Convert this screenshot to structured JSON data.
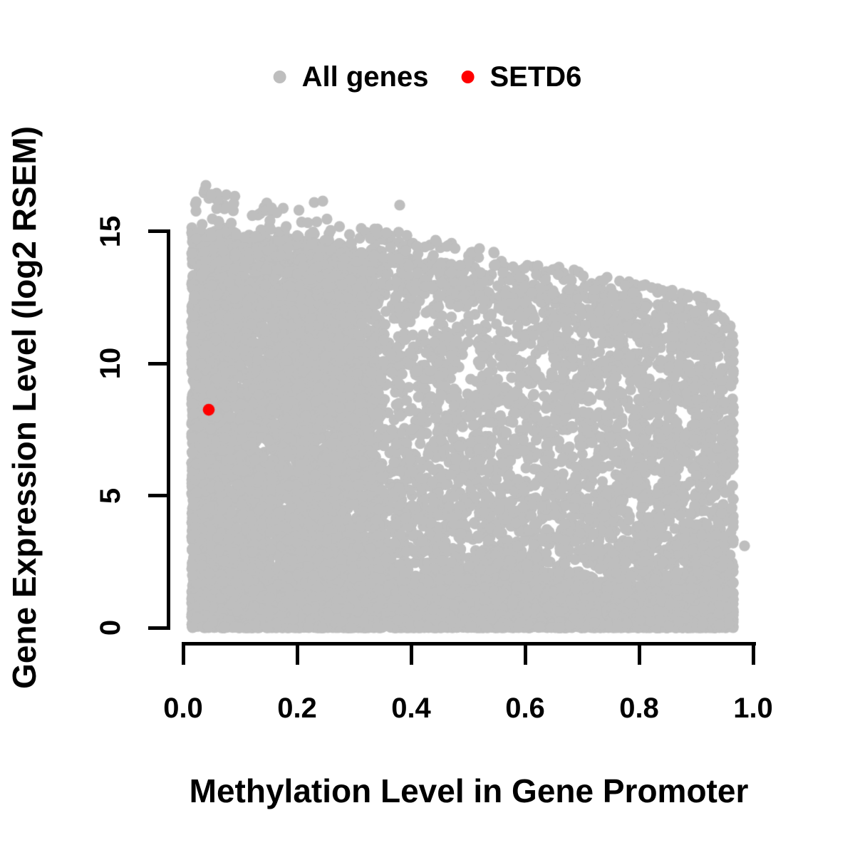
{
  "figure": {
    "background": "#FFFFFF"
  },
  "chart_data": {
    "type": "scatter",
    "title": "",
    "xlabel": "Methylation Level in Gene Promoter",
    "ylabel": "Gene Expression Level (log2 RSEM)",
    "xlim": [
      0.0,
      1.0
    ],
    "ylim": [
      0,
      16.9
    ],
    "grid": false,
    "legend_position": "top-center",
    "axis_color": "#000000",
    "x_ticks": [
      {
        "v": 0.0,
        "label": "0.0"
      },
      {
        "v": 0.2,
        "label": "0.2"
      },
      {
        "v": 0.4,
        "label": "0.4"
      },
      {
        "v": 0.6,
        "label": "0.6"
      },
      {
        "v": 0.8,
        "label": "0.8"
      },
      {
        "v": 1.0,
        "label": "1.0"
      }
    ],
    "y_ticks": [
      {
        "v": 0,
        "label": "0"
      },
      {
        "v": 5,
        "label": "5"
      },
      {
        "v": 10,
        "label": "10"
      },
      {
        "v": 15,
        "label": "15"
      }
    ],
    "legend": [
      {
        "label": "All genes",
        "color": "#BEBEBE"
      },
      {
        "label": "SETD6",
        "color": "#FF0000"
      }
    ],
    "series": [
      {
        "name": "All genes",
        "color": "#BEBEBE",
        "render": "generated-cloud",
        "n_total": 12950,
        "x_range_observed": [
          0.012,
          0.965
        ],
        "y_range_observed": [
          0,
          16.85
        ],
        "upper_envelope": {
          "at_x0": 16.6,
          "slope": -4.6
        },
        "generation": {
          "seed": 1337,
          "components": [
            {
              "name": "low-methylation-dense-column",
              "n": 4800,
              "x": {
                "base": 0.015,
                "scale": 0.33,
                "pow": 1.35
              },
              "y": {
                "maxBase": 15.2,
                "maxSlope": -2.5,
                "pow": 0.93
              }
            },
            {
              "name": "bottom-zero-expression-band",
              "n": 2600,
              "x": {
                "base": 0.015,
                "scale": 0.945,
                "pow": 0.95
              },
              "y": {
                "maxBase": 2.1,
                "maxSlope": 0,
                "pow": 2.0
              }
            },
            {
              "name": "mid-right-wedge",
              "n": 5000,
              "x": {
                "base": 0.18,
                "scale": 0.79,
                "pow": 0.92
              },
              "y": {
                "maxBase": 15.7,
                "maxSlope": -4.1,
                "pow": 1.45
              }
            },
            {
              "name": "upper-envelope-sparse-dots",
              "n": 550,
              "x": {
                "base": 0.015,
                "scale": 0.92,
                "pow": 0.8
              },
              "y": {
                "maxBase": 16.6,
                "maxSlope": -4.6,
                "band": [
                  0.84,
                  1.01
                ]
              }
            }
          ]
        },
        "outliers": [
          [
            0.04,
            16.75
          ],
          [
            0.05,
            16.4
          ],
          [
            0.155,
            15.9
          ],
          [
            0.23,
            16.1
          ],
          [
            0.245,
            16.15
          ],
          [
            0.38,
            16.0
          ],
          [
            0.52,
            14.35
          ],
          [
            0.985,
            3.1
          ]
        ]
      },
      {
        "name": "SETD6",
        "color": "#FF0000",
        "render": "points",
        "points": [
          [
            0.045,
            8.25
          ]
        ]
      }
    ]
  }
}
